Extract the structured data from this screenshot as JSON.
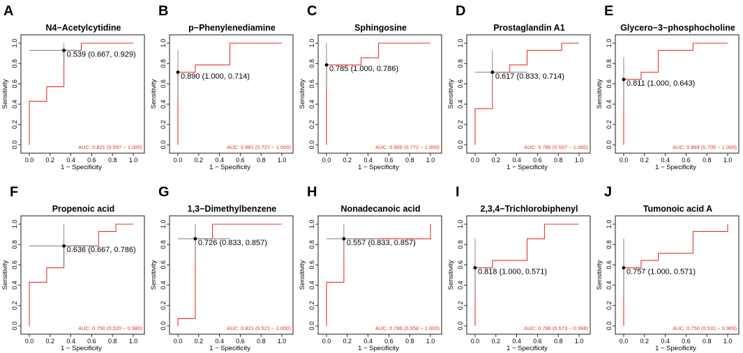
{
  "figure": {
    "xlabel": "1 − Specificity",
    "ylabel": "Sensitivity",
    "ticks": [
      "0.0",
      "0.2",
      "0.4",
      "0.6",
      "0.8",
      "1.0"
    ],
    "colors": {
      "roc": "#e8322b",
      "auc": "#e8322b",
      "axis": "#000000",
      "ci": "#7a7a7a"
    }
  },
  "chart_data": [
    {
      "type": "line",
      "letter": "A",
      "title": "N4−Acetylcytidine",
      "annotation": "0.539 (0.667, 0.929)",
      "auc_label": "AUC: 0.821 (0.597 − 1.000)",
      "xlim": [
        0,
        1
      ],
      "ylim": [
        0,
        1
      ],
      "x": [
        0,
        0,
        0.167,
        0.167,
        0.333,
        0.333,
        0.5,
        0.5,
        1
      ],
      "y": [
        0,
        0.429,
        0.429,
        0.571,
        0.571,
        0.929,
        0.929,
        1,
        1
      ],
      "threshold_point": {
        "x": 0.333,
        "y": 0.929
      },
      "ci_x": [
        0.0,
        0.5
      ],
      "ci_y": [
        0.79,
        1.0
      ]
    },
    {
      "type": "line",
      "letter": "B",
      "title": "p−Phenylenediamine",
      "annotation": "0.890 (1.000, 0.714)",
      "auc_label": "AUC: 0.881 (0.727 − 1.000)",
      "xlim": [
        0,
        1
      ],
      "ylim": [
        0,
        1
      ],
      "x": [
        0,
        0,
        0.167,
        0.167,
        0.5,
        0.5,
        1
      ],
      "y": [
        0,
        0.714,
        0.714,
        0.786,
        0.786,
        1,
        1
      ],
      "threshold_point": {
        "x": 0,
        "y": 0.714
      },
      "ci_x": [
        0,
        0
      ],
      "ci_y": [
        0.43,
        0.93
      ]
    },
    {
      "type": "line",
      "letter": "C",
      "title": "Sphingosine",
      "annotation": "0.785 (1.000, 0.786)",
      "auc_label": "AUC: 0.905 (0.772 − 1.000)",
      "xlim": [
        0,
        1
      ],
      "ylim": [
        0,
        1
      ],
      "x": [
        0,
        0,
        0.333,
        0.333,
        0.5,
        0.5,
        1
      ],
      "y": [
        0,
        0.786,
        0.786,
        0.857,
        0.857,
        1,
        1
      ],
      "threshold_point": {
        "x": 0,
        "y": 0.786
      },
      "ci_x": [
        0,
        0
      ],
      "ci_y": [
        0.57,
        1.0
      ]
    },
    {
      "type": "line",
      "letter": "D",
      "title": "Prostaglandin A1",
      "annotation": "0.617 (0.833, 0.714)",
      "auc_label": "AUC: 0.786 (0.557 − 1.000)",
      "xlim": [
        0,
        1
      ],
      "ylim": [
        0,
        1
      ],
      "x": [
        0,
        0,
        0.167,
        0.167,
        0.333,
        0.333,
        0.5,
        0.5,
        0.833,
        0.833,
        1
      ],
      "y": [
        0,
        0.357,
        0.357,
        0.714,
        0.714,
        0.786,
        0.786,
        0.929,
        0.929,
        1,
        1
      ],
      "threshold_point": {
        "x": 0.167,
        "y": 0.714
      },
      "ci_x": [
        0,
        0.5
      ],
      "ci_y": [
        0.43,
        0.93
      ]
    },
    {
      "type": "line",
      "letter": "E",
      "title": "Glycero−3−phosphocholine",
      "annotation": "0.811 (1.000, 0.643)",
      "auc_label": "AUC: 0.869 (0.705 − 1.000)",
      "xlim": [
        0,
        1
      ],
      "ylim": [
        0,
        1
      ],
      "x": [
        0,
        0,
        0.167,
        0.167,
        0.333,
        0.333,
        0.667,
        0.667,
        1
      ],
      "y": [
        0,
        0.643,
        0.643,
        0.714,
        0.714,
        0.929,
        0.929,
        1,
        1
      ],
      "threshold_point": {
        "x": 0,
        "y": 0.643
      },
      "ci_x": [
        0,
        0
      ],
      "ci_y": [
        0.36,
        0.86
      ]
    },
    {
      "type": "line",
      "letter": "F",
      "title": "Propenoic acid",
      "annotation": "0.636 (0.667, 0.786)",
      "auc_label": "AUC: 0.750 (0.520 − 0.980)",
      "xlim": [
        0,
        1
      ],
      "ylim": [
        0,
        1
      ],
      "x": [
        0,
        0,
        0.167,
        0.167,
        0.333,
        0.333,
        0.667,
        0.667,
        0.833,
        0.833,
        1
      ],
      "y": [
        0,
        0.429,
        0.429,
        0.571,
        0.571,
        0.786,
        0.786,
        0.929,
        0.929,
        1,
        1
      ],
      "threshold_point": {
        "x": 0.333,
        "y": 0.786
      },
      "ci_x": [
        0,
        0.667
      ],
      "ci_y": [
        0.57,
        1.0
      ]
    },
    {
      "type": "line",
      "letter": "G",
      "title": "1,3−Dimethylbenzene",
      "annotation": "0.726 (0.833, 0.857)",
      "auc_label": "AUC: 0.821 (0.521 − 1.000)",
      "xlim": [
        0,
        1
      ],
      "ylim": [
        0,
        1
      ],
      "x": [
        0,
        0,
        0.167,
        0.167,
        0.333,
        0.333,
        1
      ],
      "y": [
        0,
        0.071,
        0.071,
        0.857,
        0.857,
        1,
        1
      ],
      "threshold_point": {
        "x": 0.167,
        "y": 0.857
      },
      "ci_x": [
        0,
        0.5
      ],
      "ci_y": [
        0.64,
        1.0
      ]
    },
    {
      "type": "line",
      "letter": "H",
      "title": "Nonadecanoic acid",
      "annotation": "0.557 (0.833, 0.857)",
      "auc_label": "AUC: 0.786 (0.558 − 1.000)",
      "xlim": [
        0,
        1
      ],
      "ylim": [
        0,
        1
      ],
      "x": [
        0,
        0,
        0.167,
        0.167,
        1,
        1
      ],
      "y": [
        0,
        0.429,
        0.429,
        0.857,
        0.857,
        1
      ],
      "threshold_point": {
        "x": 0.167,
        "y": 0.857
      },
      "ci_x": [
        0,
        0.5
      ],
      "ci_y": [
        0.64,
        1.0
      ]
    },
    {
      "type": "line",
      "letter": "I",
      "title": "2,3,4−Trichlorobiphenyl",
      "annotation": "0.818 (1.000, 0.571)",
      "auc_label": "AUC: 0.786 (0.573 − 0.998)",
      "xlim": [
        0,
        1
      ],
      "ylim": [
        0,
        1
      ],
      "x": [
        0,
        0,
        0.167,
        0.167,
        0.5,
        0.5,
        0.667,
        0.667,
        1
      ],
      "y": [
        0,
        0.571,
        0.571,
        0.643,
        0.643,
        0.857,
        0.857,
        1,
        1
      ],
      "threshold_point": {
        "x": 0,
        "y": 0.571
      },
      "ci_x": [
        0,
        0
      ],
      "ci_y": [
        0.29,
        0.86
      ]
    },
    {
      "type": "line",
      "letter": "J",
      "title": "Tumonoic acid A",
      "annotation": "0.757 (1.000, 0.571)",
      "auc_label": "AUC: 0.750 (0.531 − 0.969)",
      "xlim": [
        0,
        1
      ],
      "ylim": [
        0,
        1
      ],
      "x": [
        0,
        0,
        0.167,
        0.167,
        0.333,
        0.333,
        0.667,
        0.667,
        1,
        1
      ],
      "y": [
        0,
        0.571,
        0.571,
        0.643,
        0.643,
        0.714,
        0.714,
        0.929,
        0.929,
        1
      ],
      "threshold_point": {
        "x": 0,
        "y": 0.571
      },
      "ci_x": [
        0,
        0
      ],
      "ci_y": [
        0.29,
        0.86
      ]
    }
  ]
}
